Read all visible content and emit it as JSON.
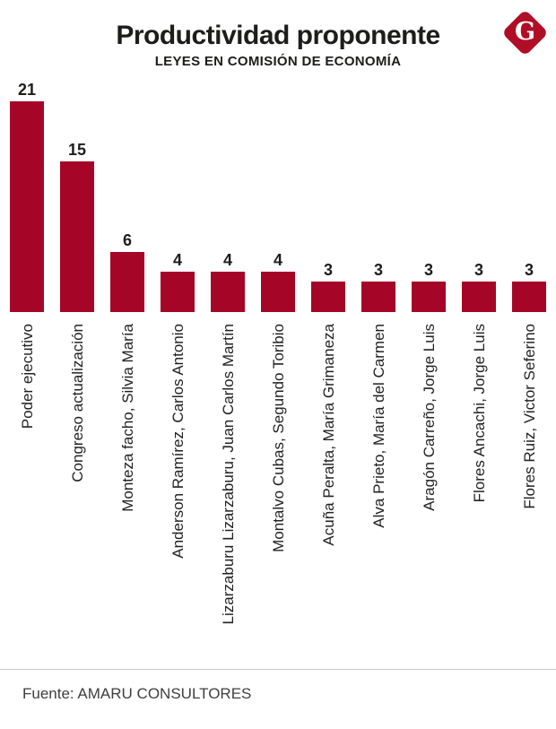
{
  "header": {
    "title": "Productividad proponente",
    "subtitle": "LEYES EN COMISIÓN DE ECONOMÍA"
  },
  "logo": {
    "letter": "G",
    "color": "#af0e26"
  },
  "chart_data": {
    "type": "bar",
    "title": "Productividad proponente",
    "subtitle": "LEYES EN COMISIÓN DE ECONOMÍA",
    "categories": [
      "Poder ejecutivo",
      "Congreso actualización",
      "Monteza facho, Silvia María",
      "Anderson Ramírez, Carlos Antonio",
      "Lizarzaburu Lizarzaburu, Juan Carlos Martín",
      "Montalvo Cubas, Segundo Toribio",
      "Acuña Peralta, María Grimaneza",
      "Alva Prieto, María del Carmen",
      "Aragón Carreño, Jorge Luis",
      "Flores Ancachi, Jorge Luis",
      "Flores Ruiz, Victor Seferino"
    ],
    "values": [
      21,
      15,
      6,
      4,
      4,
      4,
      3,
      3,
      3,
      3,
      3
    ],
    "bar_color": "#a50627",
    "value_labels_shown": true,
    "orientation": "vertical",
    "category_label_rotation_deg": -90,
    "ylim": [
      0,
      23
    ],
    "grid": false,
    "legend": false,
    "xlabel": "",
    "ylabel": ""
  },
  "footer": {
    "source": "Fuente: AMARU CONSULTORES"
  }
}
